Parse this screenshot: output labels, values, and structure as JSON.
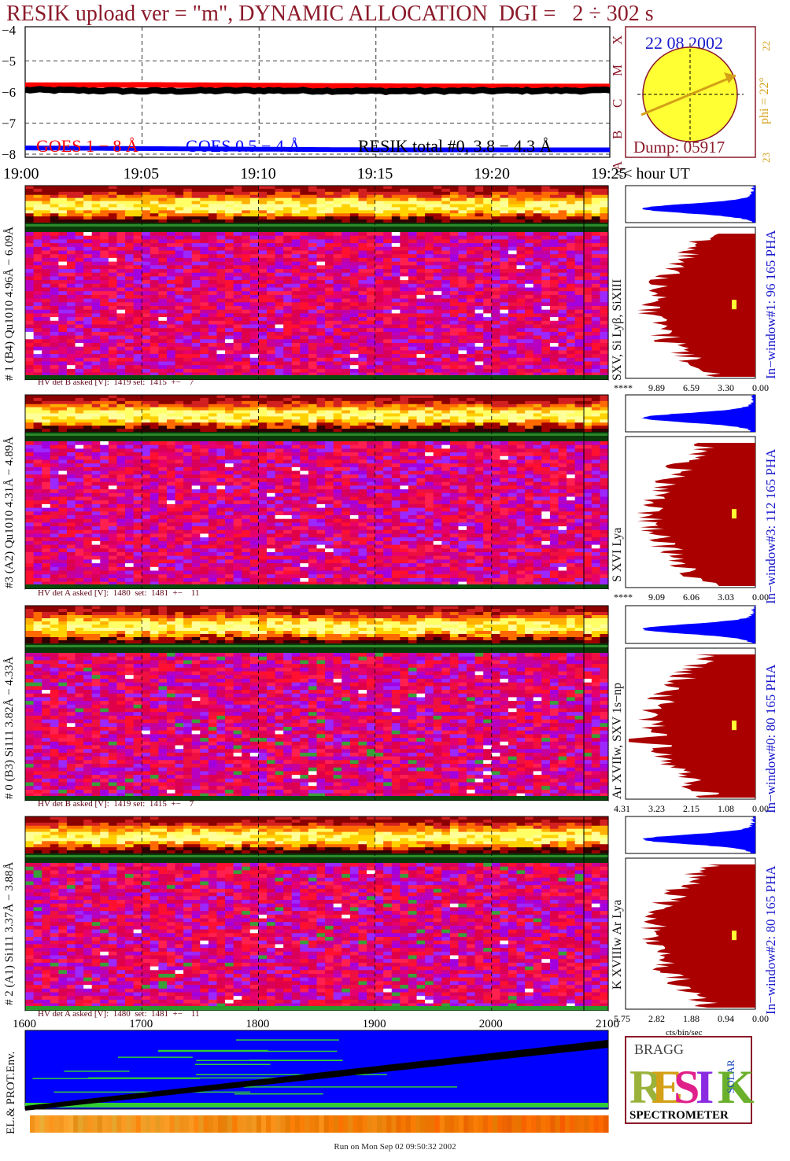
{
  "header": {
    "title": "RESIK upload ver = \"m\", DYNAMIC ALLOCATION  DGI =   2 ÷ 302 s"
  },
  "sun_panel": {
    "date": "22 08 2002",
    "dump": "Dump: 05917",
    "phi": "phi = 22°",
    "side_top": "22",
    "side_bottom": "23",
    "goes_classes": [
      "X",
      "M",
      "C",
      "B",
      "A"
    ]
  },
  "colors": {
    "goes_long": "#ff0000",
    "goes_short": "#0000ff",
    "resik_total": "#000000",
    "pha_blue": "#0000ff",
    "pha_red": "#aa0000",
    "sun_fill": "#ffff33",
    "phi_color": "#d4a017",
    "title_color": "#8b1a2a"
  },
  "chart_data": [
    {
      "type": "line",
      "title": "",
      "ylabel": "",
      "ylim": [
        -8,
        -4
      ],
      "yticks": [
        "−4",
        "−5",
        "−6",
        "−7",
        "−8"
      ],
      "xticks": [
        "19:00",
        "19:05",
        "19:10",
        "19:15",
        "19:20",
        "19:25"
      ],
      "xlabel_suffix": "<< hour UT",
      "series": [
        {
          "name": "GOES 1 − 8 Å",
          "values": [
            -5.78,
            -5.77,
            -5.79,
            -5.81,
            -5.82,
            -5.82
          ]
        },
        {
          "name": "GOES 0.5 − 4 Å",
          "values": [
            -7.8,
            -7.82,
            -7.84,
            -7.86,
            -7.86,
            -7.86
          ]
        },
        {
          "name": "RESIK total #0, 3.8 − 4.3 Å",
          "values": [
            -5.93,
            -5.97,
            -5.95,
            -5.97,
            -5.96,
            -5.95
          ]
        }
      ]
    }
  ],
  "detectors": [
    {
      "side_label": "# 1 (B4) Qu1010 4.96Å − 6.09Å",
      "line_label": "SXV, Si Lyβ, SiXIII",
      "window_label": "In−window#1:  96 165 PHA",
      "hv": "HV det B asked [V]:  1419 set:  1415  +−    7",
      "axis_ticks": [
        "****",
        "9.89",
        "6.59",
        "3.30",
        "0.00"
      ]
    },
    {
      "side_label": "#3 (A2) Qu1010  4.31Å − 4.89Å",
      "line_label": "S XVI Lya",
      "window_label": "In−window#3:  112 165 PHA",
      "hv": "HV det A asked [V]:  1480  set:  1481  +−    11",
      "axis_ticks": [
        "****",
        "9.09",
        "6.06",
        "3.03",
        "0.00"
      ]
    },
    {
      "side_label": "# 0 (B3) Si111  3.82Å − 4.33Å",
      "line_label": "Ar XVIIw,  SXV 1s−np",
      "window_label": "In−window#0:  80 165 PHA",
      "hv": "HV det B asked [V]:  1419 set:  1415  +−    7",
      "axis_ticks": [
        "4.31",
        "3.23",
        "2.15",
        "1.08",
        "0.00"
      ]
    },
    {
      "side_label": "# 2 (A1) Si111  3.37Å −  3.88Å",
      "line_label": "K XVIIIw  Ar Lya",
      "window_label": "In−window#2:  80 165 PHA",
      "hv": "HV det A asked [V]:  1480  set:  1481  +−    11",
      "axis_ticks": [
        "5.75",
        "2.82",
        "1.88",
        "0.94",
        "0.00"
      ]
    }
  ],
  "axis_bottom_unit": "cts/bin/sec",
  "env_panel": {
    "label": "EL.& PROT.Env.",
    "xticks": [
      "1600",
      "1700",
      "1800",
      "1900",
      "2000",
      "2100"
    ]
  },
  "logo": {
    "word": "RESIK",
    "bragg": "BRAGG",
    "solar": "SOLAR",
    "caption": "SPECTROMETER"
  },
  "footer": {
    "text": "Run on Mon Sep 02 09:50:32 2002"
  }
}
